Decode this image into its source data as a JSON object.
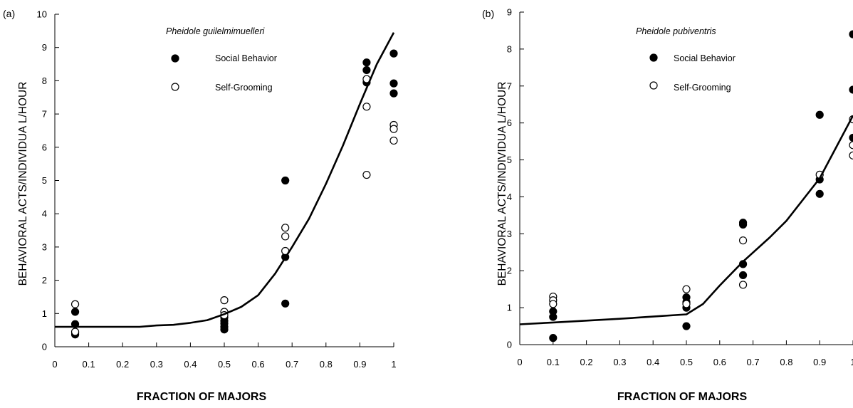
{
  "chart_data": [
    {
      "type": "scatter",
      "panel_label": "(a)",
      "annotation": "Pheidole guilelmimuelleri",
      "xlabel": "FRACTION OF MAJORS",
      "ylabel": "BEHAVIORAL ACTS/INDIVIDUA L/HOUR",
      "xlim": [
        0,
        1
      ],
      "ylim": [
        0,
        10
      ],
      "xticks": [
        0,
        0.1,
        0.2,
        0.3,
        0.4,
        0.5,
        0.6,
        0.7,
        0.8,
        0.9,
        1
      ],
      "xtick_labels": [
        "0",
        "0.1",
        "0.2",
        "0.3",
        "0.4",
        "0.5",
        "0.6",
        "0.7",
        "0.8",
        "0.9",
        "1"
      ],
      "yticks": [
        0,
        1,
        2,
        3,
        4,
        5,
        6,
        7,
        8,
        9,
        10
      ],
      "ytick_labels": [
        "0",
        "1",
        "2",
        "3",
        "4",
        "5",
        "6",
        "7",
        "8",
        "9",
        "10"
      ],
      "legend_position": "top-left",
      "grid": false,
      "series": [
        {
          "name": "Social Behavior",
          "marker": "filled-circle",
          "points": [
            [
              0.06,
              1.05
            ],
            [
              0.06,
              0.68
            ],
            [
              0.06,
              0.42
            ],
            [
              0.06,
              0.37
            ],
            [
              0.5,
              0.88
            ],
            [
              0.5,
              0.78
            ],
            [
              0.5,
              0.7
            ],
            [
              0.5,
              0.6
            ],
            [
              0.5,
              0.52
            ],
            [
              0.68,
              5.0
            ],
            [
              0.68,
              2.7
            ],
            [
              0.68,
              1.3
            ],
            [
              0.92,
              8.55
            ],
            [
              0.92,
              8.32
            ],
            [
              0.92,
              7.95
            ],
            [
              1.0,
              8.82
            ],
            [
              1.0,
              7.92
            ],
            [
              1.0,
              7.62
            ]
          ]
        },
        {
          "name": "Self-Grooming",
          "marker": "open-circle",
          "points": [
            [
              0.06,
              1.28
            ],
            [
              0.06,
              0.45
            ],
            [
              0.5,
              1.4
            ],
            [
              0.5,
              1.05
            ],
            [
              0.5,
              0.95
            ],
            [
              0.68,
              3.58
            ],
            [
              0.68,
              3.32
            ],
            [
              0.68,
              2.88
            ],
            [
              0.92,
              8.05
            ],
            [
              0.92,
              7.22
            ],
            [
              0.92,
              5.17
            ],
            [
              1.0,
              6.67
            ],
            [
              1.0,
              6.55
            ],
            [
              1.0,
              6.2
            ]
          ]
        },
        {
          "name": "",
          "type": "line",
          "points": [
            [
              0,
              0.6
            ],
            [
              0.1,
              0.6
            ],
            [
              0.25,
              0.6
            ],
            [
              0.3,
              0.64
            ],
            [
              0.35,
              0.66
            ],
            [
              0.4,
              0.72
            ],
            [
              0.45,
              0.8
            ],
            [
              0.5,
              0.98
            ],
            [
              0.55,
              1.2
            ],
            [
              0.6,
              1.55
            ],
            [
              0.65,
              2.2
            ],
            [
              0.7,
              3.0
            ],
            [
              0.75,
              3.85
            ],
            [
              0.8,
              4.9
            ],
            [
              0.85,
              6.05
            ],
            [
              0.9,
              7.3
            ],
            [
              0.95,
              8.5
            ],
            [
              1.0,
              9.45
            ]
          ]
        }
      ]
    },
    {
      "type": "scatter",
      "panel_label": "(b)",
      "annotation": "Pheidole pubiventris",
      "xlabel": "FRACTION OF MAJORS",
      "ylabel": "BEHAVIORAL ACTS/INDIVIDUA L/HOUR",
      "xlim": [
        0,
        1
      ],
      "ylim": [
        0,
        9
      ],
      "xticks": [
        0,
        0.1,
        0.2,
        0.3,
        0.4,
        0.5,
        0.6,
        0.7,
        0.8,
        0.9,
        1
      ],
      "xtick_labels": [
        "0",
        "0.1",
        "0.2",
        "0.3",
        "0.4",
        "0.5",
        "0.6",
        "0.7",
        "0.8",
        "0.9",
        "1"
      ],
      "yticks": [
        0,
        1,
        2,
        3,
        4,
        5,
        6,
        7,
        8,
        9
      ],
      "ytick_labels": [
        "0",
        "1",
        "2",
        "3",
        "4",
        "5",
        "6",
        "7",
        "8",
        "9"
      ],
      "legend_position": "top-left",
      "grid": false,
      "series": [
        {
          "name": "Social Behavior",
          "marker": "filled-circle",
          "points": [
            [
              0.1,
              0.9
            ],
            [
              0.1,
              0.75
            ],
            [
              0.1,
              0.18
            ],
            [
              0.5,
              1.28
            ],
            [
              0.5,
              1.15
            ],
            [
              0.5,
              1.0
            ],
            [
              0.5,
              0.5
            ],
            [
              0.67,
              3.3
            ],
            [
              0.67,
              3.25
            ],
            [
              0.67,
              2.18
            ],
            [
              0.67,
              1.88
            ],
            [
              0.9,
              6.22
            ],
            [
              0.9,
              4.47
            ],
            [
              0.9,
              4.08
            ],
            [
              1.0,
              8.4
            ],
            [
              1.0,
              6.9
            ],
            [
              1.0,
              5.6
            ]
          ]
        },
        {
          "name": "Self-Grooming",
          "marker": "open-circle",
          "points": [
            [
              0.1,
              1.3
            ],
            [
              0.1,
              1.2
            ],
            [
              0.1,
              1.1
            ],
            [
              0.5,
              1.5
            ],
            [
              0.5,
              1.1
            ],
            [
              0.67,
              2.82
            ],
            [
              0.67,
              1.62
            ],
            [
              0.9,
              4.6
            ],
            [
              1.0,
              6.1
            ],
            [
              1.0,
              5.4
            ],
            [
              1.0,
              5.12
            ]
          ]
        },
        {
          "name": "",
          "type": "line",
          "points": [
            [
              0,
              0.55
            ],
            [
              0.1,
              0.6
            ],
            [
              0.2,
              0.65
            ],
            [
              0.3,
              0.7
            ],
            [
              0.4,
              0.76
            ],
            [
              0.5,
              0.82
            ],
            [
              0.55,
              1.1
            ],
            [
              0.6,
              1.6
            ],
            [
              0.67,
              2.25
            ],
            [
              0.75,
              2.9
            ],
            [
              0.8,
              3.35
            ],
            [
              0.9,
              4.5
            ],
            [
              1.0,
              6.2
            ]
          ]
        }
      ]
    }
  ]
}
